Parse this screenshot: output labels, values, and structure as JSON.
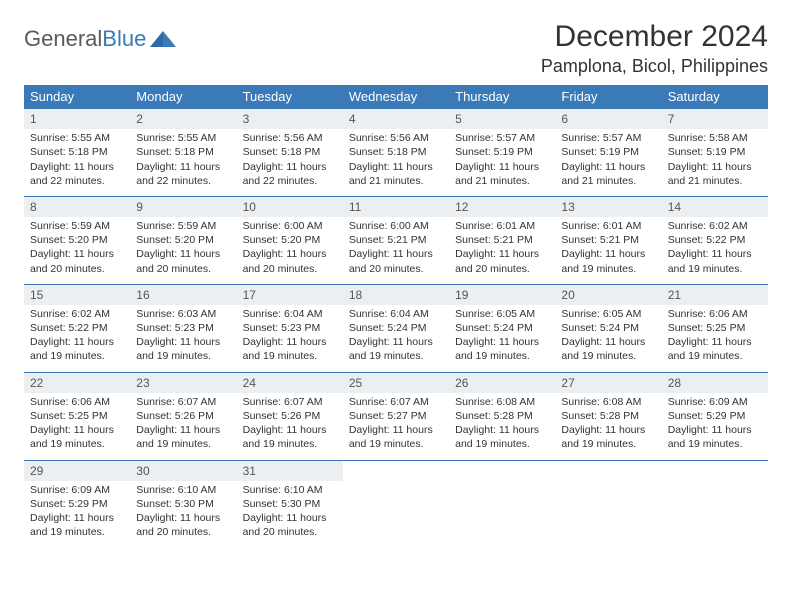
{
  "logo": {
    "text_gen": "General",
    "text_blue": "Blue"
  },
  "title": "December 2024",
  "location": "Pamplona, Bicol, Philippines",
  "colors": {
    "header_bg": "#3a7ab8",
    "header_text": "#ffffff",
    "daynum_bg": "#eceff1",
    "row_border": "#3a7ab8",
    "body_text": "#333333",
    "background": "#ffffff"
  },
  "weekdays": [
    "Sunday",
    "Monday",
    "Tuesday",
    "Wednesday",
    "Thursday",
    "Friday",
    "Saturday"
  ],
  "layout": {
    "columns": 7,
    "rows": 5,
    "cell_fontsize_pt": 10.5
  },
  "days": [
    {
      "n": 1,
      "sunrise": "5:55 AM",
      "sunset": "5:18 PM",
      "daylight": "11 hours and 22 minutes."
    },
    {
      "n": 2,
      "sunrise": "5:55 AM",
      "sunset": "5:18 PM",
      "daylight": "11 hours and 22 minutes."
    },
    {
      "n": 3,
      "sunrise": "5:56 AM",
      "sunset": "5:18 PM",
      "daylight": "11 hours and 22 minutes."
    },
    {
      "n": 4,
      "sunrise": "5:56 AM",
      "sunset": "5:18 PM",
      "daylight": "11 hours and 21 minutes."
    },
    {
      "n": 5,
      "sunrise": "5:57 AM",
      "sunset": "5:19 PM",
      "daylight": "11 hours and 21 minutes."
    },
    {
      "n": 6,
      "sunrise": "5:57 AM",
      "sunset": "5:19 PM",
      "daylight": "11 hours and 21 minutes."
    },
    {
      "n": 7,
      "sunrise": "5:58 AM",
      "sunset": "5:19 PM",
      "daylight": "11 hours and 21 minutes."
    },
    {
      "n": 8,
      "sunrise": "5:59 AM",
      "sunset": "5:20 PM",
      "daylight": "11 hours and 20 minutes."
    },
    {
      "n": 9,
      "sunrise": "5:59 AM",
      "sunset": "5:20 PM",
      "daylight": "11 hours and 20 minutes."
    },
    {
      "n": 10,
      "sunrise": "6:00 AM",
      "sunset": "5:20 PM",
      "daylight": "11 hours and 20 minutes."
    },
    {
      "n": 11,
      "sunrise": "6:00 AM",
      "sunset": "5:21 PM",
      "daylight": "11 hours and 20 minutes."
    },
    {
      "n": 12,
      "sunrise": "6:01 AM",
      "sunset": "5:21 PM",
      "daylight": "11 hours and 20 minutes."
    },
    {
      "n": 13,
      "sunrise": "6:01 AM",
      "sunset": "5:21 PM",
      "daylight": "11 hours and 19 minutes."
    },
    {
      "n": 14,
      "sunrise": "6:02 AM",
      "sunset": "5:22 PM",
      "daylight": "11 hours and 19 minutes."
    },
    {
      "n": 15,
      "sunrise": "6:02 AM",
      "sunset": "5:22 PM",
      "daylight": "11 hours and 19 minutes."
    },
    {
      "n": 16,
      "sunrise": "6:03 AM",
      "sunset": "5:23 PM",
      "daylight": "11 hours and 19 minutes."
    },
    {
      "n": 17,
      "sunrise": "6:04 AM",
      "sunset": "5:23 PM",
      "daylight": "11 hours and 19 minutes."
    },
    {
      "n": 18,
      "sunrise": "6:04 AM",
      "sunset": "5:24 PM",
      "daylight": "11 hours and 19 minutes."
    },
    {
      "n": 19,
      "sunrise": "6:05 AM",
      "sunset": "5:24 PM",
      "daylight": "11 hours and 19 minutes."
    },
    {
      "n": 20,
      "sunrise": "6:05 AM",
      "sunset": "5:24 PM",
      "daylight": "11 hours and 19 minutes."
    },
    {
      "n": 21,
      "sunrise": "6:06 AM",
      "sunset": "5:25 PM",
      "daylight": "11 hours and 19 minutes."
    },
    {
      "n": 22,
      "sunrise": "6:06 AM",
      "sunset": "5:25 PM",
      "daylight": "11 hours and 19 minutes."
    },
    {
      "n": 23,
      "sunrise": "6:07 AM",
      "sunset": "5:26 PM",
      "daylight": "11 hours and 19 minutes."
    },
    {
      "n": 24,
      "sunrise": "6:07 AM",
      "sunset": "5:26 PM",
      "daylight": "11 hours and 19 minutes."
    },
    {
      "n": 25,
      "sunrise": "6:07 AM",
      "sunset": "5:27 PM",
      "daylight": "11 hours and 19 minutes."
    },
    {
      "n": 26,
      "sunrise": "6:08 AM",
      "sunset": "5:28 PM",
      "daylight": "11 hours and 19 minutes."
    },
    {
      "n": 27,
      "sunrise": "6:08 AM",
      "sunset": "5:28 PM",
      "daylight": "11 hours and 19 minutes."
    },
    {
      "n": 28,
      "sunrise": "6:09 AM",
      "sunset": "5:29 PM",
      "daylight": "11 hours and 19 minutes."
    },
    {
      "n": 29,
      "sunrise": "6:09 AM",
      "sunset": "5:29 PM",
      "daylight": "11 hours and 19 minutes."
    },
    {
      "n": 30,
      "sunrise": "6:10 AM",
      "sunset": "5:30 PM",
      "daylight": "11 hours and 20 minutes."
    },
    {
      "n": 31,
      "sunrise": "6:10 AM",
      "sunset": "5:30 PM",
      "daylight": "11 hours and 20 minutes."
    }
  ],
  "labels": {
    "sunrise": "Sunrise:",
    "sunset": "Sunset:",
    "daylight": "Daylight:"
  }
}
